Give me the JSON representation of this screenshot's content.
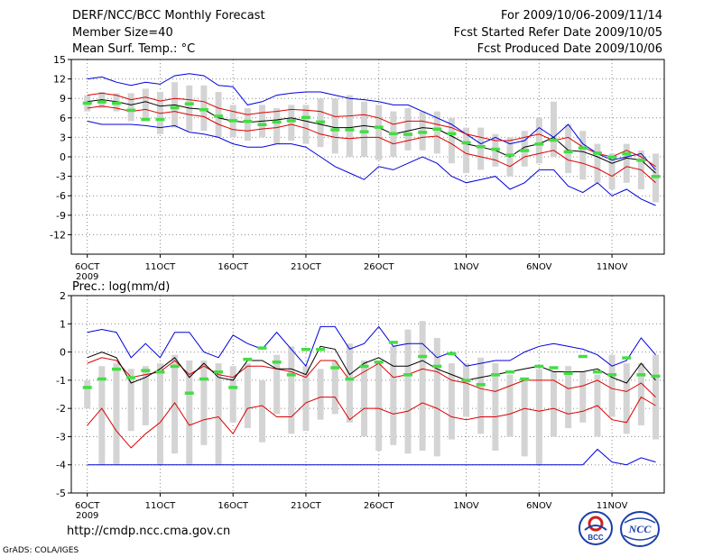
{
  "header": {
    "title": "DERF/NCC/BCC Monthly Forecast",
    "member_size": "Member Size=40",
    "variable": "Mean Surf. Temp.: °C",
    "period": "For 2009/10/06-2009/11/14",
    "fcst_started": "Fcst Started Refer Date 2009/10/05",
    "fcst_produced": "Fcst Produced Date 2009/10/06"
  },
  "footer": {
    "url": "http://cmdp.ncc.cma.gov.cn",
    "credit": "GrADS: COLA/IGES",
    "logo_bcc": "BCC",
    "logo_ncc": "NCC"
  },
  "colors": {
    "envelope": "#0000dd",
    "spread": "#dd0000",
    "mean": "#000000",
    "box": "#d4d4d4",
    "marker": "#44dd44",
    "grid": "#888888"
  },
  "chart_data": [
    {
      "type": "line",
      "title": "Mean Surf. Temp.: °C",
      "ylim": [
        -15,
        15
      ],
      "yticks": [
        15,
        12,
        9,
        6,
        3,
        0,
        -3,
        -6,
        -9,
        -12
      ],
      "xlabels": [
        {
          "day": 1,
          "label": "6OCT",
          "sub": "2009"
        },
        {
          "day": 6,
          "label": "11OCT"
        },
        {
          "day": 11,
          "label": "16OCT"
        },
        {
          "day": 16,
          "label": "21OCT"
        },
        {
          "day": 21,
          "label": "26OCT"
        },
        {
          "day": 27,
          "label": "1NOV"
        },
        {
          "day": 32,
          "label": "6NOV"
        },
        {
          "day": 37,
          "label": "11NOV"
        }
      ],
      "days": 40,
      "series": [
        {
          "name": "max",
          "role": "envelope",
          "values": [
            12,
            12.3,
            11.5,
            11,
            11.5,
            11.2,
            12.5,
            12.8,
            12.5,
            11,
            10.8,
            8,
            8.5,
            9.5,
            9.8,
            10,
            10,
            9.5,
            9,
            8.8,
            8.5,
            8,
            8,
            7,
            6,
            5,
            3.5,
            2,
            3,
            2,
            2.5,
            4.5,
            3,
            5,
            2,
            0.5,
            -0.5,
            0,
            0.5,
            -2
          ]
        },
        {
          "name": "upper",
          "role": "spread",
          "values": [
            9.5,
            9.8,
            9.5,
            8.8,
            9.2,
            8.6,
            9,
            8.8,
            8.5,
            7.5,
            7,
            6.5,
            6.8,
            7,
            7.3,
            7.2,
            7,
            6.2,
            6.3,
            6.5,
            6,
            5,
            5.5,
            5.5,
            5,
            4.5,
            3.5,
            3,
            2.5,
            2.5,
            3,
            3.5,
            2.5,
            3,
            1.5,
            0.5,
            0,
            1,
            0,
            -1.5
          ]
        },
        {
          "name": "mean",
          "role": "mean",
          "values": [
            8.5,
            8.8,
            8.5,
            8,
            8.5,
            7.8,
            8,
            7.5,
            7.3,
            6,
            5.5,
            5.3,
            5.5,
            5.7,
            6,
            5.5,
            5,
            4.5,
            4.5,
            4.8,
            4.5,
            3.5,
            4,
            4.5,
            4.3,
            3.2,
            2,
            1.5,
            1,
            0,
            1.5,
            2,
            3,
            1,
            0.8,
            0,
            -1,
            -0.2,
            -0.5,
            -2.5
          ]
        },
        {
          "name": "lower",
          "role": "spread",
          "values": [
            7.5,
            7.8,
            7.5,
            7,
            7.3,
            6.7,
            7,
            6.5,
            6.2,
            5,
            4.2,
            4,
            4.3,
            4.5,
            5,
            4.4,
            3.5,
            3,
            2.8,
            3,
            3,
            2,
            2.5,
            3,
            3.2,
            2,
            0.5,
            0,
            -0.5,
            -1.5,
            0,
            0.5,
            1,
            -0.5,
            -1,
            -1.8,
            -3,
            -1.5,
            -2,
            -4
          ]
        },
        {
          "name": "min",
          "role": "envelope",
          "values": [
            5.5,
            5,
            5,
            5,
            4.8,
            4.5,
            4.8,
            3.8,
            3.5,
            3,
            2,
            1.5,
            1.5,
            2,
            2,
            1.5,
            0,
            -1.5,
            -2.5,
            -3.5,
            -1.5,
            -2,
            -1,
            0,
            -1,
            -3,
            -4,
            -3.5,
            -3,
            -5,
            -4,
            -2,
            -2,
            -4.5,
            -5.5,
            -4,
            -6,
            -5,
            -6.5,
            -7.5
          ]
        }
      ],
      "boxes": [
        {
          "lo": 7,
          "hi": 9.5
        },
        {
          "lo": 7.5,
          "hi": 10
        },
        {
          "lo": 7,
          "hi": 9.8
        },
        {
          "lo": 5.5,
          "hi": 9.8
        },
        {
          "lo": 5.5,
          "hi": 10.5
        },
        {
          "lo": 3.5,
          "hi": 10
        },
        {
          "lo": 4.5,
          "hi": 11.5
        },
        {
          "lo": 4,
          "hi": 11
        },
        {
          "lo": 4,
          "hi": 11
        },
        {
          "lo": 3,
          "hi": 10
        },
        {
          "lo": 3,
          "hi": 8
        },
        {
          "lo": 2.5,
          "hi": 7.5
        },
        {
          "lo": 3,
          "hi": 8
        },
        {
          "lo": 2,
          "hi": 7.5
        },
        {
          "lo": 2.5,
          "hi": 8
        },
        {
          "lo": 2,
          "hi": 8
        },
        {
          "lo": 1.5,
          "hi": 9
        },
        {
          "lo": 0.5,
          "hi": 9
        },
        {
          "lo": 0,
          "hi": 9.5
        },
        {
          "lo": 0,
          "hi": 8.5
        },
        {
          "lo": -0.5,
          "hi": 8
        },
        {
          "lo": 0,
          "hi": 7
        },
        {
          "lo": 1,
          "hi": 7.5
        },
        {
          "lo": 1,
          "hi": 7
        },
        {
          "lo": 0.5,
          "hi": 7
        },
        {
          "lo": -1,
          "hi": 6
        },
        {
          "lo": -2.5,
          "hi": 4.5
        },
        {
          "lo": -2,
          "hi": 4.5
        },
        {
          "lo": -1.5,
          "hi": 3.5
        },
        {
          "lo": -3,
          "hi": 3
        },
        {
          "lo": -1.5,
          "hi": 4
        },
        {
          "lo": -1,
          "hi": 6
        },
        {
          "lo": 0,
          "hi": 8.5
        },
        {
          "lo": -2.5,
          "hi": 5
        },
        {
          "lo": -3.5,
          "hi": 4
        },
        {
          "lo": -4,
          "hi": 2
        },
        {
          "lo": -5,
          "hi": 0.5
        },
        {
          "lo": -4,
          "hi": 2
        },
        {
          "lo": -5,
          "hi": 1
        },
        {
          "lo": -7,
          "hi": 0.5
        }
      ],
      "markers": [
        8.3,
        8.5,
        8.3,
        7.2,
        5.8,
        5.8,
        7.6,
        8.2,
        7.3,
        6.3,
        5.6,
        5.5,
        5,
        5.4,
        5.6,
        6.1,
        5.4,
        4.2,
        4.2,
        3.9,
        4.6,
        3.6,
        3.5,
        3.8,
        4.3,
        3.6,
        2.2,
        1.6,
        1.2,
        0.3,
        1,
        2,
        2.6,
        0.8,
        1.4,
        0.6,
        0,
        0.5,
        -0.5,
        -3
      ]
    },
    {
      "type": "line",
      "title": "Prec.: log(mm/d)",
      "ylim": [
        -5,
        2
      ],
      "yticks": [
        2,
        1,
        0,
        -1,
        -2,
        -3,
        -4,
        -5
      ],
      "xlabels": [
        {
          "day": 1,
          "label": "6OCT",
          "sub": "2009"
        },
        {
          "day": 6,
          "label": "11OCT"
        },
        {
          "day": 11,
          "label": "16OCT"
        },
        {
          "day": 16,
          "label": "21OCT"
        },
        {
          "day": 21,
          "label": "26OCT"
        },
        {
          "day": 27,
          "label": "1NOV"
        },
        {
          "day": 32,
          "label": "6NOV"
        },
        {
          "day": 37,
          "label": "11NOV"
        }
      ],
      "days": 40,
      "series": [
        {
          "name": "max",
          "role": "envelope",
          "values": [
            0.7,
            0.8,
            0.7,
            -0.2,
            0.3,
            -0.2,
            0.7,
            0.7,
            0,
            -0.2,
            0.6,
            0.3,
            0.1,
            0.7,
            0.1,
            -0.5,
            0.9,
            0.9,
            0.1,
            0.3,
            0.9,
            0.2,
            0.3,
            0.3,
            -0.2,
            0,
            -0.5,
            -0.4,
            -0.3,
            -0.3,
            0,
            0.2,
            0.3,
            0.2,
            0.1,
            -0.1,
            -0.5,
            -0.3,
            0.5,
            -0.1
          ]
        },
        {
          "name": "upper",
          "role": "spread",
          "values": [
            -0.4,
            -0.2,
            -0.3,
            -0.9,
            -0.8,
            -0.7,
            -0.3,
            -0.8,
            -0.5,
            -0.8,
            -0.9,
            -0.5,
            -0.5,
            -0.6,
            -0.7,
            -0.9,
            -0.3,
            -0.3,
            -1,
            -0.7,
            -0.4,
            -0.9,
            -0.8,
            -0.6,
            -0.7,
            -1,
            -1.1,
            -1.3,
            -1.4,
            -1.2,
            -1,
            -1,
            -1,
            -1.3,
            -1.2,
            -1,
            -1.3,
            -1.4,
            -1.1,
            -1.6
          ]
        },
        {
          "name": "mean",
          "role": "mean",
          "values": [
            -0.2,
            0,
            -0.2,
            -1.1,
            -0.9,
            -0.6,
            -0.2,
            -0.9,
            -0.4,
            -0.9,
            -1,
            -0.3,
            -0.3,
            -0.6,
            -0.6,
            -0.8,
            0.2,
            0.1,
            -0.8,
            -0.4,
            -0.2,
            -0.5,
            -0.5,
            -0.3,
            -0.6,
            -0.8,
            -1,
            -0.9,
            -0.8,
            -0.7,
            -0.6,
            -0.5,
            -0.7,
            -0.7,
            -0.7,
            -0.6,
            -0.9,
            -1.1,
            -0.4,
            -1
          ]
        },
        {
          "name": "lower",
          "role": "spread",
          "values": [
            -2.6,
            -2,
            -2.8,
            -3.4,
            -2.9,
            -2.5,
            -1.8,
            -2.6,
            -2.4,
            -2.3,
            -2.9,
            -2,
            -1.9,
            -2.3,
            -2.3,
            -1.8,
            -1.6,
            -1.6,
            -2.4,
            -2,
            -2,
            -2.2,
            -2.1,
            -1.8,
            -2,
            -2.3,
            -2.4,
            -2.3,
            -2.3,
            -2.2,
            -2,
            -2.1,
            -2,
            -2.2,
            -2.1,
            -1.9,
            -2.4,
            -2.5,
            -1.6,
            -1.9
          ]
        },
        {
          "name": "min",
          "role": "envelope",
          "values": [
            -4,
            -4,
            -4,
            -4,
            -4,
            -4,
            -4,
            -4,
            -4,
            -4,
            -4,
            -4,
            -4,
            -4,
            -4,
            -4,
            -4,
            -4,
            -4,
            -4,
            -4,
            -4,
            -4,
            -4,
            -4,
            -4,
            -4,
            -4,
            -4,
            -4,
            -4,
            -4,
            -4,
            -4,
            -4,
            -3.45,
            -3.9,
            -4,
            -3.75,
            -3.9
          ]
        }
      ],
      "boxes": [
        {
          "lo": -2,
          "hi": -1
        },
        {
          "lo": -4,
          "hi": -0.5
        },
        {
          "lo": -4,
          "hi": -0.4
        },
        {
          "lo": -2.8,
          "hi": -0.6
        },
        {
          "lo": -2.6,
          "hi": -0.5
        },
        {
          "lo": -4,
          "hi": -0.4
        },
        {
          "lo": -3.6,
          "hi": -0.1
        },
        {
          "lo": -4,
          "hi": -0.3
        },
        {
          "lo": -3.3,
          "hi": -0.3
        },
        {
          "lo": -4,
          "hi": -0.4
        },
        {
          "lo": -2.5,
          "hi": -0.5
        },
        {
          "lo": -2.7,
          "hi": -0.4
        },
        {
          "lo": -3.2,
          "hi": -1
        },
        {
          "lo": -2.2,
          "hi": -0.1
        },
        {
          "lo": -2.9,
          "hi": 0.2
        },
        {
          "lo": -2.8,
          "hi": -0.5
        },
        {
          "lo": -2.4,
          "hi": -0.6
        },
        {
          "lo": -2.2,
          "hi": -0.3
        },
        {
          "lo": -2.5,
          "hi": 0.3
        },
        {
          "lo": -3,
          "hi": -0.3
        },
        {
          "lo": -3.5,
          "hi": -0.3
        },
        {
          "lo": -3.3,
          "hi": 0.2
        },
        {
          "lo": -3.6,
          "hi": 0.8
        },
        {
          "lo": -3.5,
          "hi": 1.1
        },
        {
          "lo": -3.7,
          "hi": 0.5
        },
        {
          "lo": -3.1,
          "hi": -0.4
        },
        {
          "lo": -2.3,
          "hi": -0.4
        },
        {
          "lo": -2.9,
          "hi": -0.2
        },
        {
          "lo": -3.5,
          "hi": -0.4
        },
        {
          "lo": -3,
          "hi": -0.8
        },
        {
          "lo": -3.7,
          "hi": -1
        },
        {
          "lo": -4,
          "hi": -0.6
        },
        {
          "lo": -3,
          "hi": -0.7
        },
        {
          "lo": -2.7,
          "hi": -0.5
        },
        {
          "lo": -2.5,
          "hi": -0.7
        },
        {
          "lo": -3,
          "hi": -0.8
        },
        {
          "lo": -2.3,
          "hi": -0.1
        },
        {
          "lo": -2.9,
          "hi": -0.4
        },
        {
          "lo": -2.6,
          "hi": -0.4
        },
        {
          "lo": -3.1,
          "hi": -0.1
        }
      ],
      "markers": [
        -1.25,
        -0.95,
        -0.6,
        -0.9,
        -0.65,
        -0.7,
        -0.5,
        -1.45,
        -0.95,
        -0.7,
        -1.25,
        -0.25,
        0.15,
        -0.35,
        -0.8,
        0.1,
        0.1,
        -0.55,
        -0.95,
        -0.5,
        -0.35,
        0.35,
        -0.8,
        -0.15,
        -0.5,
        -0.05,
        -1,
        -1.15,
        -0.8,
        -0.7,
        -0.95,
        -0.5,
        -0.55,
        -0.75,
        -0.15,
        -0.7,
        -0.8,
        -0.2,
        -0.8,
        -0.85
      ]
    }
  ]
}
